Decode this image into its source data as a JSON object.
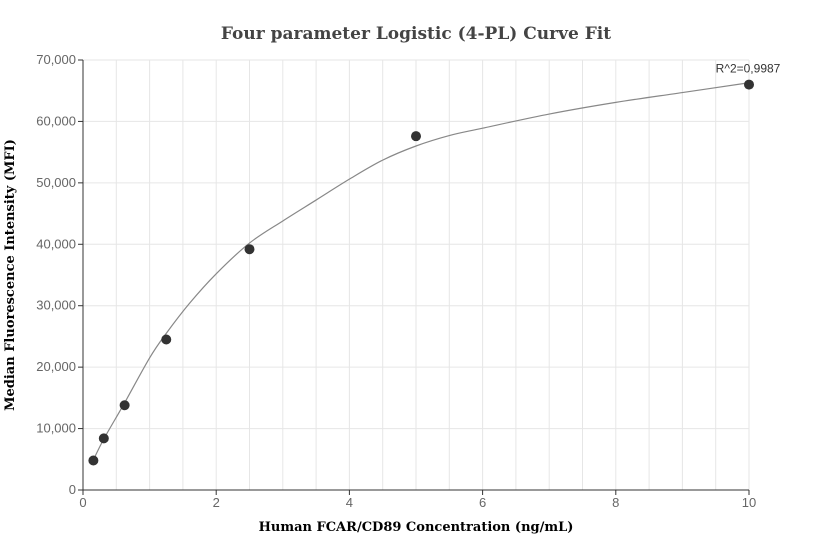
{
  "chart_data": {
    "type": "scatter",
    "title": "Four parameter Logistic (4-PL) Curve Fit",
    "xlabel": "Human FCAR/CD89 Concentration (ng/mL)",
    "ylabel": "Median Fluorescence Intensity (MFI)",
    "xlim": [
      0,
      10
    ],
    "ylim": [
      0,
      70000
    ],
    "x_ticks": [
      0,
      2,
      4,
      6,
      8,
      10
    ],
    "y_ticks": [
      0,
      10000,
      20000,
      30000,
      40000,
      50000,
      60000,
      70000
    ],
    "x_tick_labels": [
      "0",
      "2",
      "4",
      "6",
      "8",
      "10"
    ],
    "y_tick_labels": [
      "0",
      "10,000",
      "20,000",
      "30,000",
      "40,000",
      "50,000",
      "60,000",
      "70,000"
    ],
    "grid": true,
    "points": [
      {
        "x": 0.156,
        "y": 4800
      },
      {
        "x": 0.3125,
        "y": 8400
      },
      {
        "x": 0.625,
        "y": 13800
      },
      {
        "x": 1.25,
        "y": 24500
      },
      {
        "x": 2.5,
        "y": 39200
      },
      {
        "x": 5,
        "y": 57600
      },
      {
        "x": 10,
        "y": 66000
      }
    ],
    "fit_curve": [
      {
        "x": 0.156,
        "y": 4900
      },
      {
        "x": 0.3125,
        "y": 8300
      },
      {
        "x": 0.625,
        "y": 14200
      },
      {
        "x": 1.0,
        "y": 21500
      },
      {
        "x": 1.25,
        "y": 25500
      },
      {
        "x": 1.6,
        "y": 30400
      },
      {
        "x": 2.0,
        "y": 35200
      },
      {
        "x": 2.5,
        "y": 40200
      },
      {
        "x": 3.0,
        "y": 43800
      },
      {
        "x": 3.5,
        "y": 47200
      },
      {
        "x": 4.0,
        "y": 50600
      },
      {
        "x": 4.5,
        "y": 53700
      },
      {
        "x": 5.0,
        "y": 56000
      },
      {
        "x": 5.5,
        "y": 57700
      },
      {
        "x": 6.0,
        "y": 58900
      },
      {
        "x": 7.0,
        "y": 61200
      },
      {
        "x": 8.0,
        "y": 63100
      },
      {
        "x": 9.0,
        "y": 64700
      },
      {
        "x": 10.0,
        "y": 66300
      }
    ],
    "annotation": "R^2=0,9987",
    "colors": {
      "point": "#333333",
      "curve": "#888888",
      "grid": "#e6e6e6",
      "axis": "#333333"
    }
  }
}
